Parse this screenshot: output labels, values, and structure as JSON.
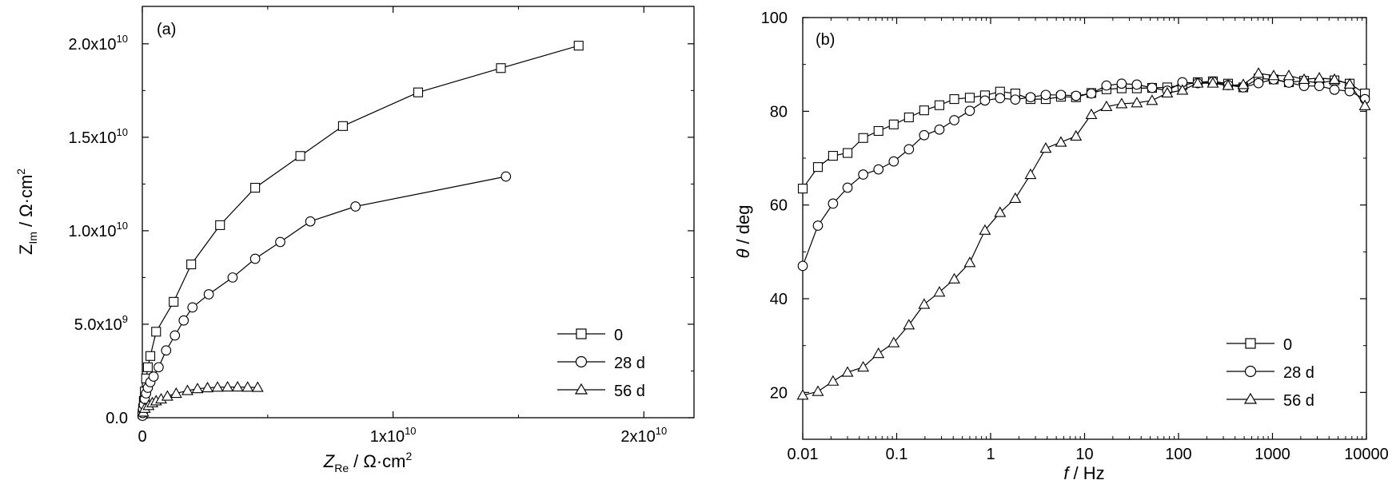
{
  "chart_data": [
    {
      "panel_label": "(a)",
      "type": "scatter",
      "x_scale": "linear",
      "y_scale": "linear",
      "xlabel": {
        "symbol": "Z",
        "subscript": "Re",
        "unit": "/ Ω·cm",
        "unit_sup": "2"
      },
      "ylabel": {
        "symbol": "Z",
        "subscript": "Im",
        "unit": "/ Ω·cm",
        "unit_sup": "2"
      },
      "xlim": [
        0,
        22000000000.0
      ],
      "ylim": [
        0,
        22000000000.0
      ],
      "x_ticks": [
        {
          "value": 0,
          "label": "0",
          "exp": ""
        },
        {
          "value": 10000000000.0,
          "label": "1x10",
          "exp": "10"
        },
        {
          "value": 20000000000.0,
          "label": "2x10",
          "exp": "10"
        }
      ],
      "y_ticks": [
        {
          "value": 0,
          "label": "0.0",
          "exp": ""
        },
        {
          "value": 5000000000.0,
          "label": "5.0x10",
          "exp": "9"
        },
        {
          "value": 10000000000.0,
          "label": "1.0x10",
          "exp": "10"
        },
        {
          "value": 15000000000.0,
          "label": "1.5x10",
          "exp": "10"
        },
        {
          "value": 20000000000.0,
          "label": "2.0x10",
          "exp": "10"
        }
      ],
      "legend_position": "bottom-right",
      "series": [
        {
          "name": "0",
          "marker": "square",
          "x": [
            10000000.0,
            30000000.0,
            60000000.0,
            100000000.0,
            150000000.0,
            220000000.0,
            320000000.0,
            550000000.0,
            1250000000.0,
            1950000000.0,
            3100000000.0,
            4500000000.0,
            6300000000.0,
            8000000000.0,
            11000000000.0,
            14300000000.0,
            17400000000.0
          ],
          "y": [
            200000000.0,
            500000000.0,
            900000000.0,
            1400000000.0,
            2100000000.0,
            2700000000.0,
            3300000000.0,
            4600000000.0,
            6200000000.0,
            8200000000.0,
            10300000000.0,
            12300000000.0,
            14000000000.0,
            15600000000.0,
            17400000000.0,
            18700000000.0,
            19900000000.0
          ]
        },
        {
          "name": "28 d",
          "marker": "circle",
          "x": [
            5000000.0,
            15000000.0,
            30000000.0,
            60000000.0,
            100000000.0,
            150000000.0,
            220000000.0,
            320000000.0,
            450000000.0,
            650000000.0,
            950000000.0,
            1300000000.0,
            1650000000.0,
            2000000000.0,
            2650000000.0,
            3600000000.0,
            4500000000.0,
            5500000000.0,
            6700000000.0,
            8500000000.0,
            14500000000.0
          ],
          "y": [
            100000000.0,
            250000000.0,
            450000000.0,
            700000000.0,
            1000000000.0,
            1300000000.0,
            1600000000.0,
            1900000000.0,
            2200000000.0,
            2700000000.0,
            3600000000.0,
            4400000000.0,
            5200000000.0,
            5900000000.0,
            6600000000.0,
            7500000000.0,
            8500000000.0,
            9400000000.0,
            10500000000.0,
            11300000000.0,
            12900000000.0
          ]
        },
        {
          "name": "56 d",
          "marker": "triangle",
          "x": [
            40000000.0,
            100000000.0,
            250000000.0,
            400000000.0,
            550000000.0,
            750000000.0,
            1000000000.0,
            1350000000.0,
            1800000000.0,
            2200000000.0,
            2600000000.0,
            3000000000.0,
            3400000000.0,
            3800000000.0,
            4200000000.0,
            4600000000.0
          ],
          "y": [
            300000000.0,
            500000000.0,
            650000000.0,
            800000000.0,
            900000000.0,
            1000000000.0,
            1150000000.0,
            1300000000.0,
            1450000000.0,
            1550000000.0,
            1600000000.0,
            1630000000.0,
            1640000000.0,
            1640000000.0,
            1630000000.0,
            1620000000.0
          ]
        }
      ]
    },
    {
      "panel_label": "(b)",
      "type": "line",
      "x_scale": "log",
      "y_scale": "linear",
      "xlabel": {
        "symbol": "f",
        "unit": "/ Hz"
      },
      "ylabel": {
        "symbol": "θ",
        "unit": "/ deg"
      },
      "xlim": [
        0.01,
        10000
      ],
      "ylim": [
        10,
        100
      ],
      "x_ticks": [
        {
          "value": 0.01,
          "label": "0.01"
        },
        {
          "value": 0.1,
          "label": "0.1"
        },
        {
          "value": 1,
          "label": "1"
        },
        {
          "value": 10,
          "label": "10"
        },
        {
          "value": 100,
          "label": "100"
        },
        {
          "value": 1000,
          "label": "1000"
        },
        {
          "value": 10000,
          "label": "10000"
        }
      ],
      "y_ticks": [
        {
          "value": 20,
          "label": "20"
        },
        {
          "value": 40,
          "label": "40"
        },
        {
          "value": 60,
          "label": "60"
        },
        {
          "value": 80,
          "label": "80"
        },
        {
          "value": 100,
          "label": "100"
        }
      ],
      "legend_position": "bottom-right",
      "series": [
        {
          "name": "0",
          "marker": "square",
          "x": [
            0.01,
            0.0145,
            0.021,
            0.03,
            0.044,
            0.064,
            0.093,
            0.135,
            0.196,
            0.285,
            0.41,
            0.6,
            0.87,
            1.26,
            1.83,
            2.66,
            3.86,
            5.6,
            8.1,
            11.8,
            17.1,
            24.8,
            36,
            52.3,
            75.9,
            110,
            160,
            232,
            337,
            489,
            710,
            1030,
            1495,
            2170,
            3150,
            4570,
            6630,
            9630
          ],
          "y": [
            63.5,
            68.1,
            70.5,
            71.1,
            74.3,
            75.8,
            77.2,
            78.7,
            80.2,
            81.3,
            82.6,
            82.9,
            83.4,
            84.2,
            83.8,
            82.6,
            82.6,
            83.1,
            83.0,
            83.9,
            84.7,
            84.9,
            84.9,
            85.0,
            85.1,
            85.6,
            86.2,
            86.4,
            85.9,
            85.1,
            87.0,
            86.8,
            86.2,
            86.5,
            86.0,
            86.6,
            85.9,
            83.8
          ]
        },
        {
          "name": "28 d",
          "marker": "circle",
          "x": [
            0.01,
            0.0145,
            0.021,
            0.03,
            0.044,
            0.064,
            0.093,
            0.135,
            0.196,
            0.285,
            0.41,
            0.6,
            0.87,
            1.26,
            1.83,
            2.66,
            3.86,
            5.6,
            8.1,
            11.8,
            17.1,
            24.8,
            36,
            52.3,
            75.9,
            110,
            160,
            232,
            337,
            489,
            710,
            1030,
            1495,
            2170,
            3150,
            4570,
            6630,
            9630
          ],
          "y": [
            47.0,
            55.6,
            60.3,
            63.7,
            66.5,
            67.6,
            69.3,
            71.9,
            74.9,
            76.1,
            78.1,
            80.1,
            82.3,
            82.8,
            82.5,
            83.0,
            83.5,
            83.5,
            83.3,
            83.8,
            85.5,
            85.9,
            85.7,
            85.0,
            84.4,
            86.2,
            86.0,
            86.3,
            85.6,
            85.1,
            86.0,
            86.8,
            86.1,
            85.4,
            85.4,
            84.6,
            84.3,
            82.6
          ]
        },
        {
          "name": "56 d",
          "marker": "triangle",
          "x": [
            0.01,
            0.0145,
            0.021,
            0.03,
            0.044,
            0.064,
            0.093,
            0.135,
            0.196,
            0.285,
            0.41,
            0.6,
            0.87,
            1.26,
            1.83,
            2.66,
            3.86,
            5.6,
            8.1,
            11.8,
            17.1,
            24.8,
            36,
            52.3,
            75.9,
            110,
            160,
            232,
            337,
            489,
            710,
            1030,
            1495,
            2170,
            3150,
            4570,
            6630,
            9630
          ],
          "y": [
            19.4,
            20.2,
            22.4,
            24.3,
            25.4,
            28.3,
            30.6,
            34.4,
            38.8,
            41.4,
            44.2,
            47.7,
            54.6,
            58.4,
            61.4,
            66.5,
            72.1,
            73.4,
            74.7,
            79.3,
            81.0,
            81.6,
            81.8,
            82.3,
            83.9,
            84.5,
            86.0,
            86.0,
            85.5,
            85.7,
            88.1,
            87.6,
            87.6,
            86.8,
            87.1,
            86.8,
            85.8,
            81.2
          ]
        }
      ]
    }
  ]
}
